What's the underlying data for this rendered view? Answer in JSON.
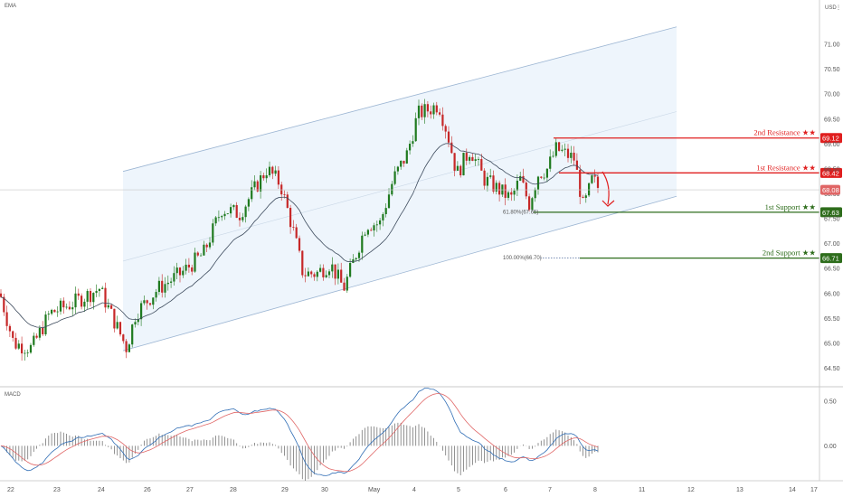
{
  "chart_data": [
    {
      "type": "candlestick",
      "indicator_label": "EMA",
      "currency_label": "USD",
      "y_ticks": [
        "71.00",
        "70.50",
        "70.00",
        "69.50",
        "69.00",
        "68.50",
        "68.00",
        "67.50",
        "67.00",
        "66.50",
        "66.00",
        "65.50",
        "65.00",
        "64.50"
      ],
      "y_range": [
        64.2,
        71.6
      ],
      "x_ticks": [
        "22",
        "23",
        "24",
        "26",
        "27",
        "28",
        "29",
        "30",
        "May",
        "4",
        "5",
        "6",
        "7",
        "8",
        "11",
        "12",
        "13",
        "14",
        "17"
      ],
      "current_price": {
        "value": 68.08,
        "label": "68.08"
      },
      "levels": [
        {
          "name": "2nd Resistance",
          "stars": "★★",
          "value": 69.12,
          "label": "69.12",
          "color": "#e01f1f"
        },
        {
          "name": "1st Resistance",
          "stars": "★★",
          "value": 68.42,
          "label": "68.42",
          "color": "#e01f1f"
        },
        {
          "name": "1st Support",
          "stars": "★★",
          "value": 67.63,
          "label": "67.63",
          "color": "#2e6d1c"
        },
        {
          "name": "2nd Support",
          "stars": "★★",
          "value": 66.71,
          "label": "66.71",
          "color": "#2e6d1c"
        }
      ],
      "fib_labels": [
        {
          "text": "61.80%(67.65)",
          "value": 67.63
        },
        {
          "text": "100.00%(66.70)",
          "value": 66.71
        }
      ],
      "channel": {
        "upper": [
          [
            64.95,
            68.0
          ],
          [
            71.35,
            68.0
          ]
        ],
        "lower": [
          [
            64.85,
            64.85
          ],
          [
            68.0,
            64.85
          ]
        ]
      },
      "colors": {
        "up": "#1f7a1f",
        "down": "#c62828",
        "channel_fill": "#e8f1fb",
        "channel_line": "#9db6d3",
        "ema": "#3c4a5c",
        "arrow": "#e01f1f"
      }
    },
    {
      "type": "line",
      "indicator_label": "MACD",
      "y_ticks": [
        "0.50",
        "0.00"
      ],
      "y_range": [
        -0.35,
        0.62
      ],
      "series": [
        {
          "name": "",
          "color": "#2f6db5"
        },
        {
          "name": "",
          "color": "#e06666"
        }
      ]
    }
  ]
}
